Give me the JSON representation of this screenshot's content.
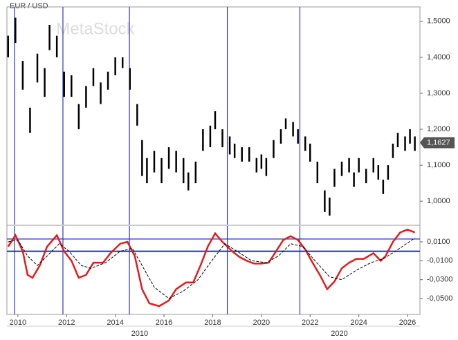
{
  "chart_data": [
    {
      "type": "ohlc",
      "title": "EUR / USD",
      "watermark": "MetaStock",
      "color": "#000000",
      "x": [
        2009.6,
        2009.9,
        2010.2,
        2010.5,
        2010.8,
        2011.1,
        2011.3,
        2011.6,
        2011.9,
        2012.2,
        2012.5,
        2012.8,
        2013.1,
        2013.4,
        2013.7,
        2014.0,
        2014.3,
        2014.6,
        2014.9,
        2015.1,
        2015.3,
        2015.6,
        2015.9,
        2016.2,
        2016.5,
        2016.8,
        2017.0,
        2017.3,
        2017.6,
        2017.9,
        2018.1,
        2018.4,
        2018.7,
        2018.9,
        2019.2,
        2019.5,
        2019.8,
        2020.0,
        2020.2,
        2020.5,
        2020.8,
        2021.0,
        2021.3,
        2021.5,
        2021.8,
        2022.0,
        2022.3,
        2022.6,
        2022.8,
        2023.0,
        2023.3,
        2023.6,
        2023.8,
        2024.0,
        2024.3,
        2024.6,
        2024.8,
        2025.0,
        2025.2,
        2025.4,
        2025.6,
        2025.9,
        2026.1,
        2026.3
      ],
      "high": [
        1.46,
        1.51,
        1.39,
        1.26,
        1.41,
        1.37,
        1.49,
        1.46,
        1.36,
        1.35,
        1.27,
        1.32,
        1.37,
        1.33,
        1.36,
        1.4,
        1.4,
        1.37,
        1.27,
        1.17,
        1.12,
        1.14,
        1.12,
        1.15,
        1.14,
        1.12,
        1.08,
        1.11,
        1.2,
        1.21,
        1.25,
        1.2,
        1.18,
        1.16,
        1.15,
        1.15,
        1.12,
        1.13,
        1.12,
        1.17,
        1.2,
        1.23,
        1.22,
        1.2,
        1.18,
        1.16,
        1.11,
        1.03,
        1.01,
        1.09,
        1.11,
        1.12,
        1.08,
        1.12,
        1.09,
        1.12,
        1.1,
        1.06,
        1.1,
        1.16,
        1.19,
        1.18,
        1.2,
        1.18
      ],
      "low": [
        1.4,
        1.44,
        1.31,
        1.19,
        1.33,
        1.29,
        1.42,
        1.4,
        1.29,
        1.29,
        1.2,
        1.26,
        1.32,
        1.27,
        1.31,
        1.35,
        1.37,
        1.31,
        1.21,
        1.07,
        1.05,
        1.08,
        1.05,
        1.09,
        1.08,
        1.05,
        1.03,
        1.05,
        1.14,
        1.15,
        1.2,
        1.15,
        1.13,
        1.12,
        1.11,
        1.11,
        1.08,
        1.09,
        1.07,
        1.12,
        1.16,
        1.2,
        1.18,
        1.16,
        1.14,
        1.11,
        1.05,
        0.97,
        0.96,
        1.04,
        1.07,
        1.08,
        1.04,
        1.08,
        1.05,
        1.08,
        1.06,
        1.02,
        1.06,
        1.12,
        1.15,
        1.14,
        1.16,
        1.14
      ],
      "ylim": [
        0.935,
        1.54
      ],
      "yticks": [
        {
          "value": 1.0,
          "label": "1,0000"
        },
        {
          "value": 1.1,
          "label": "1,1000"
        },
        {
          "value": 1.2,
          "label": "1,2000"
        },
        {
          "value": 1.3,
          "label": "1,3000"
        },
        {
          "value": 1.4,
          "label": "1,4000"
        },
        {
          "value": 1.5,
          "label": "1,5000"
        }
      ],
      "last_price": {
        "value": 1.1627,
        "label": "1,1627"
      },
      "xlim": [
        2009.55,
        2026.51
      ],
      "vlines": [
        2009.86,
        2011.85,
        2014.58,
        2018.6,
        2021.58
      ],
      "vline_color": "#2b35c8"
    },
    {
      "type": "line",
      "series": [
        {
          "color": "#e31b1b",
          "dash": false,
          "x": [
            2009.6,
            2009.9,
            2010.2,
            2010.4,
            2010.6,
            2010.9,
            2011.2,
            2011.6,
            2011.9,
            2012.2,
            2012.5,
            2012.8,
            2013.1,
            2013.5,
            2013.8,
            2014.2,
            2014.5,
            2014.8,
            2015.1,
            2015.4,
            2015.8,
            2016.2,
            2016.5,
            2016.9,
            2017.2,
            2017.5,
            2017.8,
            2018.1,
            2018.4,
            2018.8,
            2019.1,
            2019.4,
            2019.7,
            2020.0,
            2020.3,
            2020.6,
            2020.9,
            2021.2,
            2021.5,
            2021.8,
            2022.1,
            2022.4,
            2022.7,
            2023.0,
            2023.3,
            2023.6,
            2023.9,
            2024.2,
            2024.6,
            2024.9,
            2025.1,
            2025.4,
            2025.7,
            2026.0,
            2026.3
          ],
          "values": [
            0.005,
            0.017,
            0.0,
            -0.025,
            -0.028,
            -0.015,
            0.005,
            0.017,
            0.0,
            -0.01,
            -0.028,
            -0.025,
            -0.012,
            -0.012,
            -0.002,
            0.008,
            0.01,
            -0.005,
            -0.04,
            -0.055,
            -0.058,
            -0.052,
            -0.04,
            -0.033,
            -0.033,
            -0.015,
            0.005,
            0.019,
            0.01,
            0.0,
            -0.006,
            -0.01,
            -0.013,
            -0.013,
            -0.012,
            0.0,
            0.012,
            0.016,
            0.012,
            0.002,
            -0.012,
            -0.025,
            -0.04,
            -0.032,
            -0.018,
            -0.012,
            -0.008,
            -0.008,
            -0.002,
            -0.01,
            -0.005,
            0.01,
            0.02,
            0.023,
            0.02
          ]
        },
        {
          "color": "#000000",
          "dash": true,
          "x": [
            2009.6,
            2010.0,
            2010.4,
            2010.8,
            2011.2,
            2011.7,
            2012.1,
            2012.6,
            2013.0,
            2013.6,
            2014.2,
            2014.7,
            2015.1,
            2015.6,
            2016.2,
            2016.8,
            2017.4,
            2017.9,
            2018.5,
            2019.0,
            2019.6,
            2020.2,
            2020.7,
            2021.2,
            2021.7,
            2022.2,
            2022.8,
            2023.3,
            2023.9,
            2024.5,
            2025.0,
            2025.5,
            2026.3
          ],
          "values": [
            0.01,
            0.012,
            -0.005,
            -0.015,
            -0.005,
            0.008,
            0.0,
            -0.015,
            -0.018,
            -0.012,
            0.0,
            0.003,
            -0.015,
            -0.038,
            -0.05,
            -0.042,
            -0.03,
            -0.012,
            0.008,
            0.0,
            -0.01,
            -0.012,
            -0.005,
            0.008,
            0.005,
            -0.01,
            -0.027,
            -0.03,
            -0.02,
            -0.012,
            -0.008,
            0.0,
            0.014
          ]
        }
      ],
      "ylim": [
        -0.0668,
        0.0268
      ],
      "yticks": [
        {
          "value": -0.05,
          "label": "-0,0500"
        },
        {
          "value": -0.03,
          "label": "-0,0300"
        },
        {
          "value": -0.01,
          "label": "-0,0100"
        },
        {
          "value": 0.01,
          "label": "0,0100"
        }
      ],
      "hlines": [
        0.013,
        0
      ],
      "hline_color": "#1f2fc8",
      "xlim": [
        2009.55,
        2026.51
      ],
      "xticks": [
        2010,
        2012,
        2014,
        2016,
        2018,
        2020,
        2022,
        2024,
        2026
      ],
      "x2ticks": [
        {
          "value": 2015,
          "label": "2010"
        },
        {
          "value": 2023.2,
          "label": "2020"
        }
      ],
      "vlines": [
        2009.86,
        2011.85,
        2014.58,
        2018.6,
        2021.58
      ],
      "vline_color": "#2b35c8"
    }
  ]
}
